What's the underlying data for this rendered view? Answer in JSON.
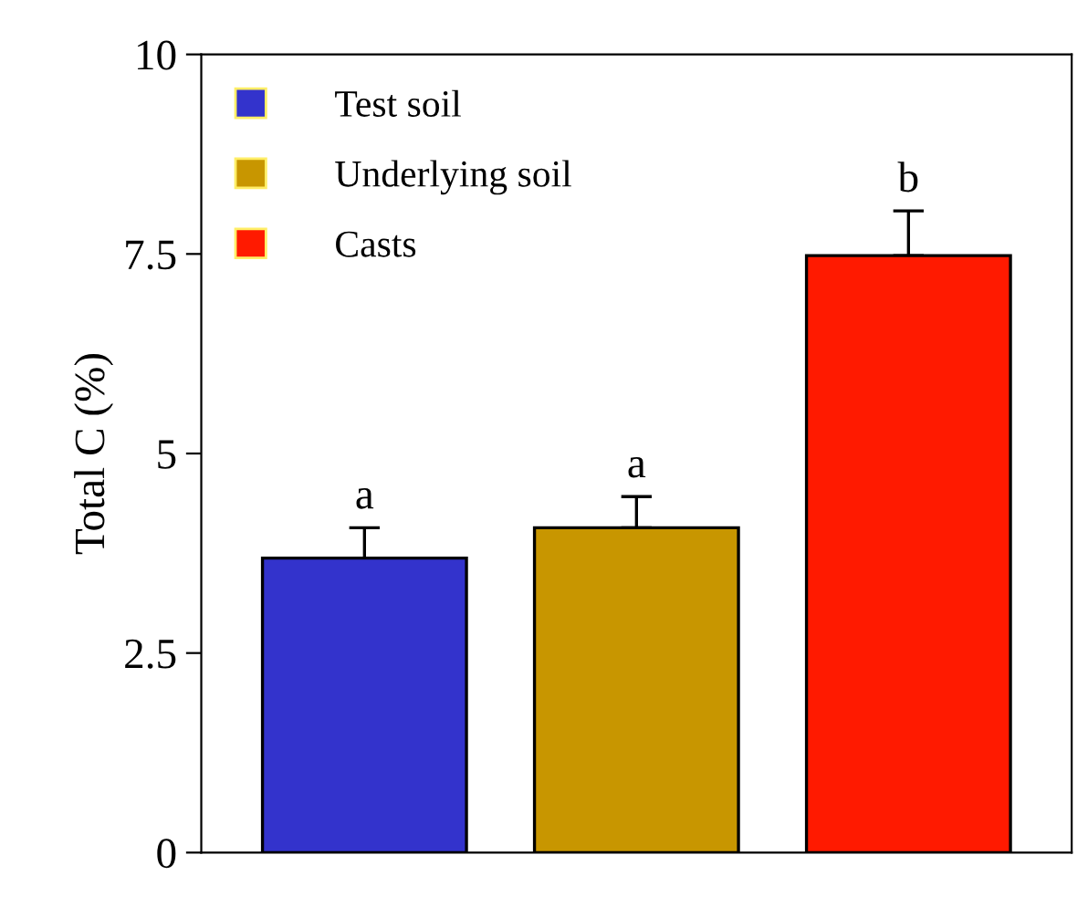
{
  "chart_data": {
    "type": "bar",
    "ylabel": "Total C (%)",
    "categories": [
      null,
      null,
      null
    ],
    "series": [
      {
        "name": "Test soil",
        "color": "#3333cc",
        "values": [
          3.69,
          null,
          null
        ],
        "errors": [
          0.38,
          null,
          null
        ]
      },
      {
        "name": "Underlying soil",
        "color": "#c89600",
        "values": [
          null,
          4.07,
          null
        ],
        "errors": [
          null,
          0.39,
          null
        ]
      },
      {
        "name": "Casts",
        "color": "#ff1a00",
        "values": [
          null,
          null,
          7.48
        ],
        "errors": [
          null,
          null,
          0.56
        ]
      }
    ],
    "annotations": [
      {
        "text": "a",
        "y": 4.07
      },
      {
        "text": "a",
        "y": 4.46
      },
      {
        "text": "b",
        "y": 8.04
      }
    ],
    "ylim": [
      0,
      10
    ],
    "yticks": [
      0,
      2.5,
      5,
      7.5,
      10
    ],
    "grid": false,
    "legend": "top left",
    "tick_labels": "y"
  }
}
